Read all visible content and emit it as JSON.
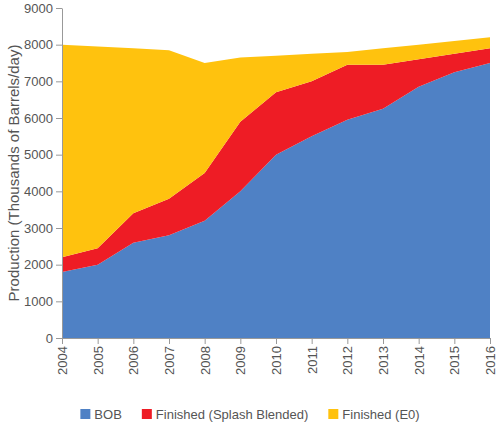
{
  "chart_data": {
    "type": "area",
    "stacked": true,
    "y_label": "Production (Thousands of Barrels/day)",
    "x": [
      2004,
      2005,
      2006,
      2007,
      2008,
      2009,
      2010,
      2011,
      2012,
      2013,
      2014,
      2015,
      2016
    ],
    "xlim": [
      2004,
      2016
    ],
    "xticks": [
      2004,
      2005,
      2006,
      2007,
      2008,
      2009,
      2010,
      2011,
      2012,
      2013,
      2014,
      2015,
      2016
    ],
    "ylim": [
      0,
      9000
    ],
    "yticks": [
      0,
      1000,
      2000,
      3000,
      4000,
      5000,
      6000,
      7000,
      8000,
      9000
    ],
    "grid": false,
    "legend": "bottom",
    "series": [
      {
        "name": "BOB",
        "color": "#4f81c5",
        "values": [
          1800,
          2000,
          2600,
          2800,
          3200,
          4000,
          5000,
          5500,
          5950,
          6250,
          6850,
          7250,
          7500
        ]
      },
      {
        "name": "Finished (Splash Blended)",
        "color": "#ee1c25",
        "values": [
          400,
          450,
          800,
          1000,
          1300,
          1900,
          1700,
          1500,
          1500,
          1200,
          750,
          500,
          400
        ]
      },
      {
        "name": "Finished (E0)",
        "color": "#ffc20e",
        "values": [
          5800,
          5500,
          4500,
          4050,
          3000,
          1750,
          1000,
          750,
          350,
          450,
          400,
          350,
          300
        ]
      }
    ]
  }
}
